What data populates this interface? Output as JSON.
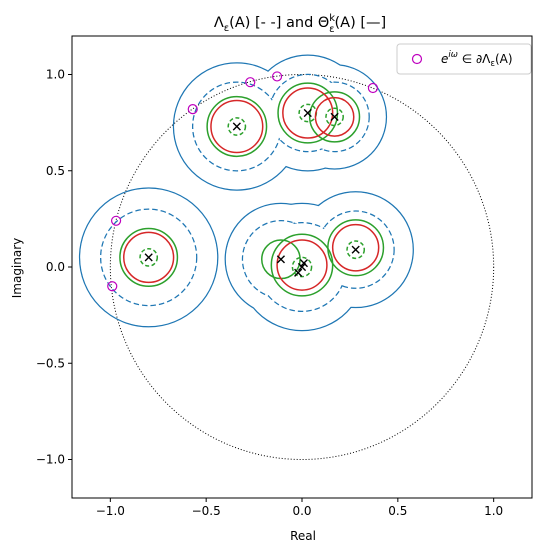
{
  "chart_data": {
    "type": "scatter",
    "title": "Λε(A) [- -] and Θεk(A) [—]",
    "title_parts": {
      "lam": "Λ",
      "eps": "ε",
      "argA": "(A) [- -] and Θ",
      "k": "k",
      "argA2": "(A) [—]"
    },
    "xlabel": "Real",
    "ylabel": "Imaginary",
    "xlim": [
      -1.2,
      1.2
    ],
    "ylim": [
      -1.2,
      1.2
    ],
    "xticks": [
      "−1.0",
      "−0.5",
      "0.0",
      "0.5",
      "1.0"
    ],
    "yticks": [
      "−1.0",
      "−0.5",
      "0.0",
      "0.5",
      "1.0"
    ],
    "xtick_values": [
      -1.0,
      -0.5,
      0.0,
      0.5,
      1.0
    ],
    "ytick_values": [
      -1.0,
      -0.5,
      0.0,
      0.5,
      1.0
    ],
    "grid": false,
    "legend": {
      "placement": "top-right",
      "label": "eiω ∈ ∂Λε(A)",
      "label_parts": {
        "e": "e",
        "iw": "iω",
        "mid": " ∈ ∂Λ",
        "eps": "ε",
        "end": "(A)"
      }
    },
    "unit_circle": {
      "center": [
        0,
        0
      ],
      "radius": 1.0,
      "style": "dotted",
      "color": "#000000"
    },
    "eigenvalues": [
      [
        -0.8,
        0.05
      ],
      [
        -0.34,
        0.73
      ],
      [
        0.03,
        0.8
      ],
      [
        0.17,
        0.78
      ],
      [
        -0.11,
        0.04
      ],
      [
        0.0,
        0.0
      ],
      [
        -0.02,
        -0.03
      ],
      [
        0.01,
        0.02
      ],
      [
        0.28,
        0.09
      ]
    ],
    "boundary_points": [
      [
        -0.97,
        0.24
      ],
      [
        -0.99,
        -0.1
      ],
      [
        -0.57,
        0.82
      ],
      [
        -0.27,
        0.96
      ],
      [
        -0.13,
        0.99
      ],
      [
        0.37,
        0.93
      ]
    ],
    "pseudospectrum_dashed": [
      {
        "center": [
          -0.8,
          0.05
        ],
        "radius": 0.25
      },
      {
        "center": [
          -0.34,
          0.73
        ],
        "radius": 0.23
      },
      {
        "center": [
          0.03,
          0.8
        ],
        "radius": 0.2
      },
      {
        "center": [
          0.17,
          0.78
        ],
        "radius": 0.18
      },
      {
        "center": [
          0.0,
          0.0
        ],
        "radius": 0.23
      },
      {
        "center": [
          -0.11,
          0.04
        ],
        "radius": 0.2
      },
      {
        "center": [
          0.28,
          0.09
        ],
        "radius": 0.2
      }
    ],
    "pseudospectrum_outer": [
      {
        "center": [
          -0.8,
          0.05
        ],
        "radius": 0.36
      },
      {
        "center": [
          -0.34,
          0.73
        ],
        "radius": 0.33
      },
      {
        "center": [
          0.03,
          0.8
        ],
        "radius": 0.3
      },
      {
        "center": [
          0.17,
          0.78
        ],
        "radius": 0.27
      },
      {
        "center": [
          0.0,
          0.0
        ],
        "radius": 0.33
      },
      {
        "center": [
          -0.11,
          0.04
        ],
        "radius": 0.29
      },
      {
        "center": [
          0.28,
          0.09
        ],
        "radius": 0.3
      }
    ],
    "theta_green": [
      {
        "center": [
          -0.8,
          0.05
        ],
        "radius": 0.15
      },
      {
        "center": [
          -0.8,
          0.05
        ],
        "radius": 0.045,
        "dashed": true
      },
      {
        "center": [
          -0.34,
          0.73
        ],
        "radius": 0.155
      },
      {
        "center": [
          -0.34,
          0.73
        ],
        "radius": 0.045,
        "dashed": true
      },
      {
        "center": [
          0.03,
          0.8
        ],
        "radius": 0.155
      },
      {
        "center": [
          0.17,
          0.78
        ],
        "radius": 0.13
      },
      {
        "center": [
          0.03,
          0.8
        ],
        "radius": 0.045,
        "dashed": true
      },
      {
        "center": [
          0.17,
          0.78
        ],
        "radius": 0.045,
        "dashed": true
      },
      {
        "center": [
          0.0,
          0.01
        ],
        "radius": 0.16
      },
      {
        "center": [
          -0.11,
          0.04
        ],
        "radius": 0.1
      },
      {
        "center": [
          0.28,
          0.1
        ],
        "radius": 0.145
      },
      {
        "center": [
          0.0,
          0.0
        ],
        "radius": 0.05,
        "dashed": true
      },
      {
        "center": [
          0.28,
          0.09
        ],
        "radius": 0.045,
        "dashed": true
      }
    ],
    "theta_red": [
      {
        "center": [
          -0.8,
          0.05
        ],
        "radius": 0.13
      },
      {
        "center": [
          -0.34,
          0.73
        ],
        "radius": 0.135
      },
      {
        "center": [
          0.03,
          0.8
        ],
        "radius": 0.13
      },
      {
        "center": [
          0.17,
          0.78
        ],
        "radius": 0.1
      },
      {
        "center": [
          0.0,
          0.01
        ],
        "radius": 0.13
      },
      {
        "center": [
          0.28,
          0.1
        ],
        "radius": 0.12
      }
    ],
    "colors": {
      "pseudospectrum": "#1f77b4",
      "theta_outer": "#2ca02c",
      "theta_inner": "#d62728",
      "boundary_marker": "#bf00bf",
      "eigenvalue": "#000000"
    }
  }
}
